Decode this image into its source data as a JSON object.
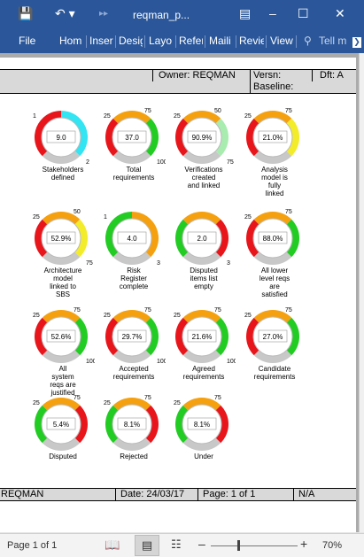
{
  "window": {
    "title": "reqman_p...",
    "colors": {
      "brand": "#2b579a"
    }
  },
  "ribbon": {
    "tabs": [
      "File",
      "Hom",
      "Inser",
      "Desig",
      "Layo",
      "Refer",
      "Maili",
      "Revie",
      "View"
    ],
    "tell_me": "Tell m"
  },
  "header": {
    "owner": "Owner: REQMAN",
    "version": "Versn:",
    "draft": "Dft: A",
    "baseline": "Baseline:"
  },
  "gauges": [
    {
      "value_text": "9.0",
      "label": [
        "Stakeholders",
        "defined"
      ],
      "ticks": [
        "1",
        "",
        "2"
      ],
      "arc": "red-cyan"
    },
    {
      "value_text": "37.0",
      "label": [
        "Total",
        "requirements"
      ],
      "ticks": [
        "25",
        "75",
        "100"
      ],
      "arc": "red-orange-green"
    },
    {
      "value_text": "90.9%",
      "label": [
        "Verifications",
        "created",
        "and linked"
      ],
      "ticks": [
        "25",
        "50",
        "75"
      ],
      "arc": "red-orange-lightgreen"
    },
    {
      "value_text": "21.0%",
      "label": [
        "Analysis",
        "model is",
        "fully",
        "linked"
      ],
      "ticks": [
        "25",
        "75",
        ""
      ],
      "arc": "red-orange-yellow"
    },
    {
      "value_text": "52.9%",
      "label": [
        "Architecture",
        "model",
        "linked to",
        "SBS"
      ],
      "ticks": [
        "25",
        "50",
        "75"
      ],
      "arc": "red-orange-yellow"
    },
    {
      "value_text": "4.0",
      "label": [
        "Risk",
        "Register",
        "complete"
      ],
      "ticks": [
        "1",
        "",
        "3"
      ],
      "arc": "green-orange"
    },
    {
      "value_text": "2.0",
      "label": [
        "Disputed",
        "items list",
        "empty"
      ],
      "ticks": [
        "",
        "",
        "3"
      ],
      "arc": "green-orange-red"
    },
    {
      "value_text": "88.0%",
      "label": [
        "All lower",
        "level reqs",
        "are",
        "satisfied"
      ],
      "ticks": [
        "25",
        "75",
        ""
      ],
      "arc": "red-orange-green"
    },
    {
      "value_text": "52.6%",
      "label": [
        "All",
        "system",
        "reqs are",
        "justified"
      ],
      "ticks": [
        "25",
        "75",
        "100"
      ],
      "arc": "red-orange-green"
    },
    {
      "value_text": "29.7%",
      "label": [
        "Accepted",
        "requirements"
      ],
      "ticks": [
        "25",
        "75",
        "100"
      ],
      "arc": "red-orange-green"
    },
    {
      "value_text": "21.6%",
      "label": [
        "Agreed",
        "requirements"
      ],
      "ticks": [
        "25",
        "75",
        "100"
      ],
      "arc": "red-orange-green"
    },
    {
      "value_text": "27.0%",
      "label": [
        "Candidate",
        "requirements"
      ],
      "ticks": [
        "25",
        "75",
        ""
      ],
      "arc": "red-orange-green"
    },
    {
      "value_text": "5.4%",
      "label": [
        "Disputed"
      ],
      "ticks": [
        "25",
        "75",
        ""
      ],
      "arc": "green-orange-red"
    },
    {
      "value_text": "8.1%",
      "label": [
        "Rejected"
      ],
      "ticks": [
        "25",
        "75",
        ""
      ],
      "arc": "green-orange-red"
    },
    {
      "value_text": "8.1%",
      "label": [
        "Under"
      ],
      "ticks": [
        "25",
        "75",
        ""
      ],
      "arc": "green-orange-red"
    }
  ],
  "footer": {
    "owner": "REQMAN",
    "date": "Date: 24/03/17",
    "page": "Page: 1 of 1",
    "na": "N/A"
  },
  "statusbar": {
    "page": "Page 1 of 1",
    "zoom": "70%"
  }
}
